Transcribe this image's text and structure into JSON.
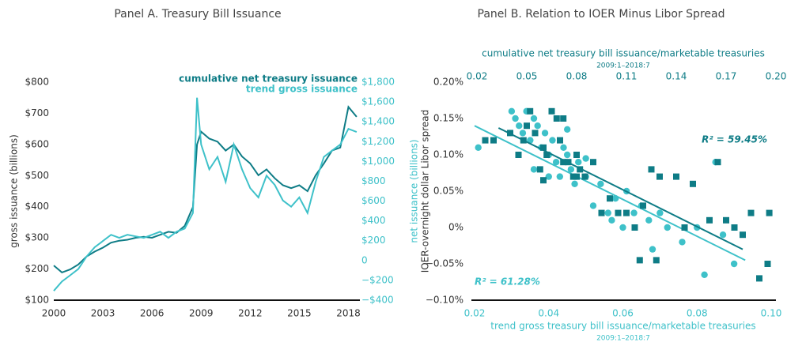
{
  "chart_data": [
    {
      "type": "line",
      "title": "Panel A. Treasury Bill Issuance",
      "ylabel": "gross issuance (billions)",
      "y2label": "net issuance (billions)",
      "x": [
        2000,
        2000.5,
        2001,
        2001.5,
        2002,
        2002.5,
        2003,
        2003.5,
        2004,
        2004.5,
        2005,
        2005.5,
        2006,
        2006.5,
        2007,
        2007.5,
        2008,
        2008.5,
        2008.75,
        2009,
        2009.5,
        2010,
        2010.5,
        2011,
        2011.5,
        2012,
        2012.5,
        2013,
        2013.5,
        2014,
        2014.5,
        2015,
        2015.5,
        2016,
        2016.5,
        2017,
        2017.5,
        2018,
        2018.5
      ],
      "xlim": [
        2000,
        2018.7
      ],
      "xticks": [
        2000,
        2003,
        2006,
        2009,
        2012,
        2015,
        2018
      ],
      "ylim": [
        100,
        800
      ],
      "yticks": [
        {
          "value": 100,
          "label": "$100"
        },
        {
          "value": 200,
          "label": "$200"
        },
        {
          "value": 300,
          "label": "$300"
        },
        {
          "value": 400,
          "label": "$400"
        },
        {
          "value": 500,
          "label": "$500"
        },
        {
          "value": 600,
          "label": "$600"
        },
        {
          "value": 700,
          "label": "$700"
        },
        {
          "value": 800,
          "label": "$800"
        }
      ],
      "y2lim": [
        -400,
        1800
      ],
      "y2ticks": [
        {
          "value": -400,
          "label": "−$400"
        },
        {
          "value": -200,
          "label": "−$200"
        },
        0,
        {
          "value": 200,
          "label": "$200"
        },
        {
          "value": 400,
          "label": "$400"
        },
        {
          "value": 600,
          "label": "$600"
        },
        {
          "value": 800,
          "label": "$800"
        },
        {
          "value": 1000,
          "label": "$1,000"
        },
        {
          "value": 1200,
          "label": "$1,200"
        },
        {
          "value": 1400,
          "label": "$1,400"
        },
        {
          "value": 1600,
          "label": "$1,600"
        },
        {
          "value": 1800,
          "label": "$1,800"
        }
      ],
      "legend": "upper right",
      "series": [
        {
          "name": "cumulative net treasury issuance",
          "color": "#0e7c86",
          "axis": "y2",
          "values": [
            -50,
            -120,
            -90,
            -40,
            40,
            90,
            130,
            180,
            200,
            210,
            230,
            240,
            230,
            260,
            290,
            280,
            350,
            540,
            1170,
            1300,
            1230,
            1200,
            1110,
            1170,
            1050,
            980,
            860,
            920,
            830,
            760,
            730,
            760,
            700,
            860,
            980,
            1110,
            1140,
            1550,
            1450
          ]
        },
        {
          "name": "trend gross issuance",
          "color": "#3ec1c9",
          "axis": "y",
          "values": [
            130,
            160,
            180,
            200,
            240,
            270,
            290,
            310,
            300,
            310,
            305,
            300,
            310,
            320,
            300,
            320,
            330,
            380,
            750,
            600,
            520,
            560,
            480,
            600,
            520,
            460,
            430,
            500,
            470,
            420,
            400,
            430,
            380,
            480,
            560,
            580,
            600,
            650,
            640
          ]
        }
      ]
    },
    {
      "type": "scatter",
      "title": "Panel B. Relation to IOER Minus Libor Spread",
      "ylabel": "IOER-overnight dollar Libor spread",
      "xlabel": "trend gross treasury bill issuance/marketable treasuries",
      "xsubtitle": "2009:1–2018:7",
      "x2label": "cumulative net treasury bill issuance/marketable treasuries",
      "x2subtitle": "2009:1–2018:7",
      "xlim": [
        0.02,
        0.1
      ],
      "xticks": [
        0.02,
        0.04,
        0.06,
        0.08,
        {
          "value": 0.1,
          "label": "0.10"
        }
      ],
      "x2lim": [
        0.02,
        0.2
      ],
      "x2ticks": [
        0.02,
        0.05,
        0.08,
        0.11,
        0.14,
        0.17,
        {
          "value": 0.2,
          "label": "0.20"
        }
      ],
      "ylim": [
        -0.1,
        0.2
      ],
      "yticks": [
        {
          "value": -0.1,
          "label": "−0.10%"
        },
        {
          "value": -0.05,
          "label": "−0.05%"
        },
        {
          "value": 0,
          "label": "0%"
        },
        {
          "value": 0.05,
          "label": "0.05%"
        },
        {
          "value": 0.1,
          "label": "0.10%"
        },
        {
          "value": 0.15,
          "label": "0.15%"
        },
        {
          "value": 0.2,
          "label": "0.20%"
        }
      ],
      "series": [
        {
          "color": "#3ec1c9",
          "marker": "circle",
          "axis": "x",
          "r2_label": "R² = 61.28%",
          "x": [
            0.021,
            0.03,
            0.031,
            0.032,
            0.033,
            0.034,
            0.035,
            0.036,
            0.037,
            0.038,
            0.039,
            0.04,
            0.041,
            0.042,
            0.043,
            0.044,
            0.045,
            0.046,
            0.047,
            0.048,
            0.05,
            0.052,
            0.054,
            0.056,
            0.057,
            0.058,
            0.06,
            0.061,
            0.063,
            0.065,
            0.067,
            0.068,
            0.07,
            0.072,
            0.076,
            0.08,
            0.082,
            0.085,
            0.087,
            0.09,
            0.036,
            0.04,
            0.05,
            0.045
          ],
          "y": [
            0.11,
            0.16,
            0.15,
            0.14,
            0.13,
            0.16,
            0.12,
            0.15,
            0.14,
            0.11,
            0.13,
            0.1,
            0.12,
            0.09,
            0.07,
            0.11,
            0.1,
            0.08,
            0.06,
            0.09,
            0.07,
            0.03,
            0.06,
            0.02,
            0.01,
            0.04,
            0,
            0.05,
            0.02,
            0.03,
            0.01,
            -0.03,
            0.02,
            0,
            -0.02,
            0,
            -0.065,
            0.09,
            -0.01,
            -0.05,
            0.08,
            0.07,
            0.095,
            0.135
          ],
          "trendline": {
            "x": [
              0.02,
              0.093
            ],
            "y": [
              0.14,
              -0.045
            ]
          }
        },
        {
          "color": "#0e7c86",
          "marker": "square",
          "axis": "x2",
          "r2_label": "R² = 59.45%",
          "x": [
            0.025,
            0.03,
            0.04,
            0.045,
            0.048,
            0.05,
            0.052,
            0.055,
            0.058,
            0.06,
            0.062,
            0.065,
            0.068,
            0.07,
            0.072,
            0.075,
            0.078,
            0.08,
            0.082,
            0.085,
            0.09,
            0.095,
            0.1,
            0.105,
            0.11,
            0.115,
            0.118,
            0.12,
            0.125,
            0.128,
            0.13,
            0.14,
            0.145,
            0.15,
            0.16,
            0.165,
            0.17,
            0.175,
            0.18,
            0.185,
            0.19,
            0.195,
            0.196,
            0.072,
            0.06,
            0.08
          ],
          "y": [
            0.12,
            0.12,
            0.13,
            0.1,
            0.12,
            0.14,
            0.16,
            0.13,
            0.08,
            0.11,
            0.1,
            0.16,
            0.15,
            0.12,
            0.09,
            0.09,
            0.07,
            0.1,
            0.08,
            0.07,
            0.09,
            0.02,
            0.04,
            0.02,
            0.02,
            0,
            -0.045,
            0.03,
            0.08,
            -0.045,
            0.07,
            0.07,
            0,
            0.06,
            0.01,
            0.09,
            0.01,
            0,
            -0.01,
            0.02,
            -0.07,
            -0.05,
            0.02,
            0.15,
            0.065,
            0.07
          ],
          "trendline": {
            "x": [
              0.033,
              0.18
            ],
            "y": [
              0.137,
              -0.03
            ]
          }
        }
      ]
    }
  ]
}
